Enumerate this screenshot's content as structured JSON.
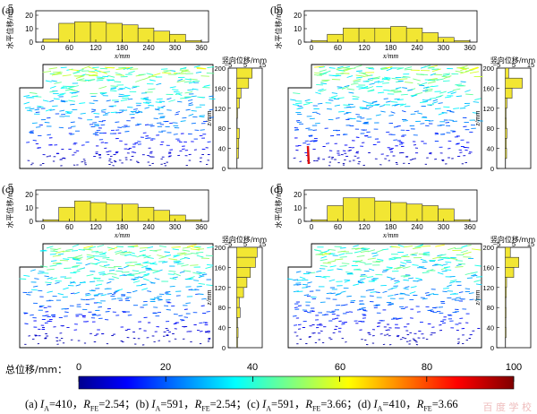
{
  "panels": [
    {
      "id": "a",
      "label": "(a)",
      "top_hist": [
        2,
        12,
        13,
        13,
        12,
        11,
        9,
        7,
        5,
        1
      ],
      "side_hist": [
        9,
        7,
        2.5,
        1.5,
        0.5,
        0.3,
        1.5,
        1.2,
        1,
        0.2
      ]
    },
    {
      "id": "b",
      "label": "(b)",
      "top_hist": [
        1,
        5,
        9,
        9,
        9,
        10,
        9,
        6,
        3,
        1
      ],
      "side_hist": [
        2,
        10,
        4,
        1,
        0.5,
        0.6,
        1,
        0.6,
        0.8,
        0.2
      ]
    },
    {
      "id": "c",
      "label": "(c)",
      "top_hist": [
        1,
        9,
        13,
        12,
        11,
        11,
        9,
        7,
        4,
        1
      ],
      "side_hist": [
        12,
        11,
        8,
        6,
        4,
        1.5,
        2,
        0.5,
        0.8,
        0.5
      ]
    },
    {
      "id": "d",
      "label": "(d)",
      "top_hist": [
        1,
        10,
        15,
        15,
        13,
        12,
        11,
        10,
        8,
        1
      ],
      "side_hist": [
        3,
        8,
        5,
        0.8,
        0.6,
        0.4,
        0.5,
        0.4,
        0.5,
        0.2
      ]
    }
  ],
  "axes": {
    "top_ylabel": "水平位移/mm",
    "top_yticks": [
      "20",
      "10",
      "0"
    ],
    "top_xlabel": "x/mm",
    "top_xticks": [
      "0",
      "30",
      "60",
      "90",
      "120",
      "150",
      "180",
      "210",
      "240",
      "270",
      "300",
      "330",
      "360"
    ],
    "top_xtick_labels": [
      "0",
      "60",
      "120",
      "180",
      "240",
      "300",
      "360"
    ],
    "side_title": "竖向位移/mm",
    "side_xtick_labels": [
      "−5",
      "5",
      "15"
    ],
    "side_ylabel": "z/mm",
    "side_ytick_labels": [
      "200",
      "160",
      "120",
      "80",
      "40",
      "0"
    ]
  },
  "colorbar": {
    "label": "总位移/mm：",
    "ticks": [
      "0",
      "20",
      "40",
      "60",
      "80",
      "100"
    ],
    "min": 0,
    "max": 100
  },
  "caption": [
    "(a) ",
    "I",
    "A",
    "=410，",
    "R",
    "FE",
    "=2.54；(b) ",
    "I",
    "A",
    "=591，",
    "R",
    "FE",
    "=2.54；(c) ",
    "I",
    "A",
    "=591，",
    "R",
    "FE",
    "=3.66；(d) ",
    "I",
    "A",
    "=410，",
    "R",
    "FE",
    "=3.66"
  ],
  "watermark": "百 度 学 校",
  "colors": {
    "bar_fill": "#f2e633",
    "bar_stroke": "#333333",
    "frame": "#000000"
  }
}
